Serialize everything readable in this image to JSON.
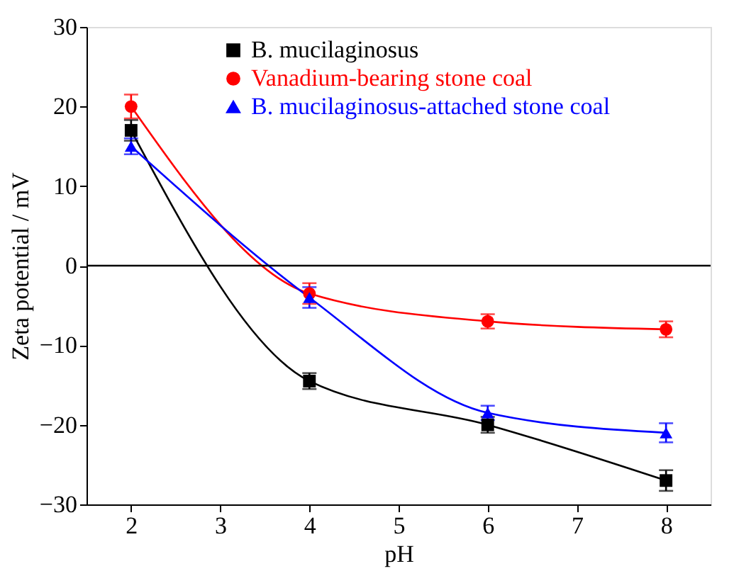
{
  "chart_data": {
    "type": "line",
    "xlabel": "pH",
    "ylabel": "Zeta potential / mV",
    "x": [
      2,
      4,
      6,
      8
    ],
    "series": [
      {
        "name": "B. mucilaginosus",
        "color": "#000000",
        "marker": "square",
        "values": [
          17,
          -14.5,
          -20,
          -27
        ],
        "errors": [
          1.3,
          1,
          1,
          1.3
        ]
      },
      {
        "name": "Vanadium-bearing stone coal",
        "color": "#ff0000",
        "marker": "circle",
        "values": [
          20,
          -3.5,
          -7,
          -8
        ],
        "errors": [
          1.5,
          1.3,
          0.9,
          1
        ]
      },
      {
        "name": "B. mucilaginosus-attached stone coal",
        "color": "#0000ff",
        "marker": "triangle",
        "values": [
          15,
          -4,
          -18.5,
          -21
        ],
        "errors": [
          1,
          1.3,
          0.9,
          1.2
        ]
      }
    ],
    "xlim": [
      1.5,
      8.5
    ],
    "xticks": [
      2,
      3,
      4,
      5,
      6,
      7,
      8
    ],
    "ylim": [
      -30,
      30
    ],
    "yticks": [
      -30,
      -20,
      -10,
      0,
      10,
      20,
      30
    ],
    "ref_lines": [
      {
        "axis": "y",
        "value": 0,
        "color": "#000000"
      }
    ],
    "grid": false,
    "legend": "top",
    "line_style": "solid"
  }
}
